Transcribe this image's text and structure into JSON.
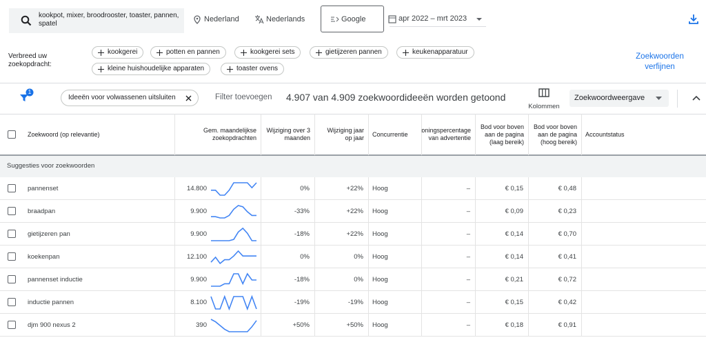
{
  "search": {
    "query": "kookpot, mixer, broodrooster, toaster, pannen, spatel",
    "location": "Nederland",
    "language": "Nederlands",
    "network": "Google",
    "date_range": "apr 2022 – mrt 2023"
  },
  "broaden": {
    "label": "Verbreed uw zoekopdracht:",
    "chips": [
      "kookgerei",
      "potten en pannen",
      "kookgerei sets",
      "gietijzeren pannen",
      "keukenapparatuur",
      "kleine huishoudelijke apparaten",
      "toaster ovens"
    ],
    "refine": "Zoekwoorden verfijnen"
  },
  "filters": {
    "badge": "1",
    "chip": "Ideeën voor volwassenen uitsluiten",
    "add": "Filter toevoegen",
    "summary": "4.907 van 4.909 zoekwoordideeën worden getoond",
    "columns": "Kolommen",
    "view": "Zoekwoordweergave"
  },
  "table": {
    "columns": [
      "Zoekwoord (op relevantie)",
      "Gem. maandelijkse zoekopdrachten",
      "Wijziging over 3 maanden",
      "Wijziging jaar op jaar",
      "Concurrentie",
      "Vertoningspercentage van advertentie",
      "Bod voor boven aan de pagina (laag bereik)",
      "Bod voor boven aan de pagina (hoog bereik)",
      "Accountstatus"
    ],
    "section": "Suggesties voor zoekwoorden",
    "rows": [
      {
        "keyword": "pannenset",
        "cells": [
          "14.800",
          "0%",
          "+22%",
          "Hoog",
          "–",
          "€ 0,15",
          "€ 0,48"
        ],
        "trend": [
          0.4,
          0.4,
          0.0,
          0.0,
          0.4,
          1.0,
          1.0,
          1.0,
          1.0,
          0.6,
          1.0
        ]
      },
      {
        "keyword": "braadpan",
        "cells": [
          "9.900",
          "-33%",
          "+22%",
          "Hoog",
          "–",
          "€ 0,09",
          "€ 0,23"
        ],
        "trend": [
          0.1,
          0.1,
          0.0,
          0.0,
          0.2,
          0.7,
          1.0,
          0.9,
          0.5,
          0.2,
          0.2
        ]
      },
      {
        "keyword": "gietijzeren pan",
        "cells": [
          "9.900",
          "-18%",
          "+22%",
          "Hoog",
          "–",
          "€ 0,14",
          "€ 0,70"
        ],
        "trend": [
          0.0,
          0.0,
          0.0,
          0.0,
          0.0,
          0.1,
          0.7,
          1.0,
          0.6,
          0.0,
          0.0
        ]
      },
      {
        "keyword": "koekenpan",
        "cells": [
          "12.100",
          "0%",
          "0%",
          "Hoog",
          "–",
          "€ 0,14",
          "€ 0,41"
        ],
        "trend": [
          0.1,
          0.5,
          0.0,
          0.3,
          0.3,
          0.6,
          1.0,
          0.6,
          0.6,
          0.6,
          0.6
        ]
      },
      {
        "keyword": "pannenset inductie",
        "cells": [
          "9.900",
          "-18%",
          "0%",
          "Hoog",
          "–",
          "€ 0,21",
          "€ 0,72"
        ],
        "trend": [
          0.0,
          0.0,
          0.0,
          0.2,
          0.2,
          1.0,
          1.0,
          0.2,
          1.0,
          0.5,
          0.5
        ]
      },
      {
        "keyword": "inductie pannen",
        "cells": [
          "8.100",
          "-19%",
          "-19%",
          "Hoog",
          "–",
          "€ 0,15",
          "€ 0,42"
        ],
        "trend": [
          1.0,
          0.0,
          0.0,
          1.0,
          0.0,
          1.0,
          1.0,
          1.0,
          0.0,
          1.0,
          0.0
        ]
      },
      {
        "keyword": "djm 900 nexus 2",
        "cells": [
          "390",
          "+50%",
          "+50%",
          "Hoog",
          "–",
          "€ 0,18",
          "€ 0,91"
        ],
        "trend": [
          1.0,
          0.8,
          0.5,
          0.2,
          0.0,
          0.0,
          0.0,
          0.0,
          0.0,
          0.4,
          0.9
        ]
      }
    ]
  }
}
